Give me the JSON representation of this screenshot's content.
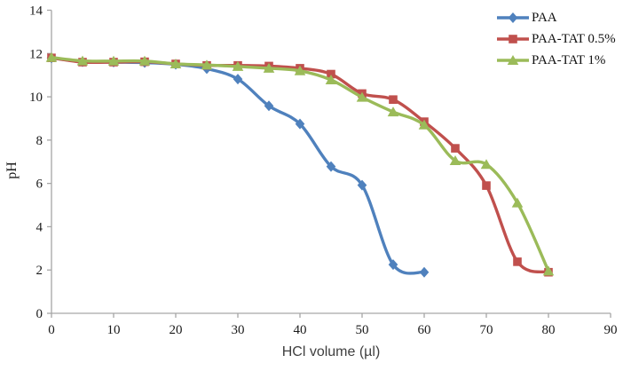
{
  "chart_data": {
    "type": "line",
    "title": "",
    "xlabel": "HCl volume (µl)",
    "ylabel": "pH",
    "xlim": [
      0,
      90
    ],
    "ylim": [
      0,
      14
    ],
    "xticks": [
      0,
      10,
      20,
      30,
      40,
      50,
      60,
      70,
      80,
      90
    ],
    "yticks": [
      0,
      2,
      4,
      6,
      8,
      10,
      12,
      14
    ],
    "grid": false,
    "legend_position": "top-right",
    "axis_color": "#a6a6a6",
    "x": [
      0,
      5,
      10,
      15,
      20,
      25,
      30,
      35,
      40,
      45,
      50,
      55,
      60,
      65,
      70,
      75,
      80
    ],
    "series": [
      {
        "name": "PAA",
        "color": "#4F81BD",
        "marker": "diamond",
        "values": [
          11.8,
          11.62,
          11.6,
          11.58,
          11.5,
          11.3,
          10.82,
          9.58,
          8.75,
          6.78,
          5.92,
          2.25,
          1.9,
          null,
          null,
          null,
          null
        ]
      },
      {
        "name": "PAA-TAT 0.5%",
        "color": "#C0504D",
        "marker": "square",
        "values": [
          11.8,
          11.6,
          11.6,
          11.62,
          11.52,
          11.45,
          11.45,
          11.42,
          11.32,
          11.05,
          10.15,
          9.87,
          8.85,
          7.62,
          5.9,
          2.38,
          1.9
        ]
      },
      {
        "name": "PAA-TAT 1%",
        "color": "#9BBB59",
        "marker": "triangle",
        "values": [
          11.82,
          11.66,
          11.65,
          11.65,
          11.52,
          11.47,
          11.4,
          11.32,
          11.2,
          10.78,
          9.98,
          9.3,
          8.7,
          7.05,
          6.88,
          5.1,
          1.95
        ]
      }
    ]
  }
}
